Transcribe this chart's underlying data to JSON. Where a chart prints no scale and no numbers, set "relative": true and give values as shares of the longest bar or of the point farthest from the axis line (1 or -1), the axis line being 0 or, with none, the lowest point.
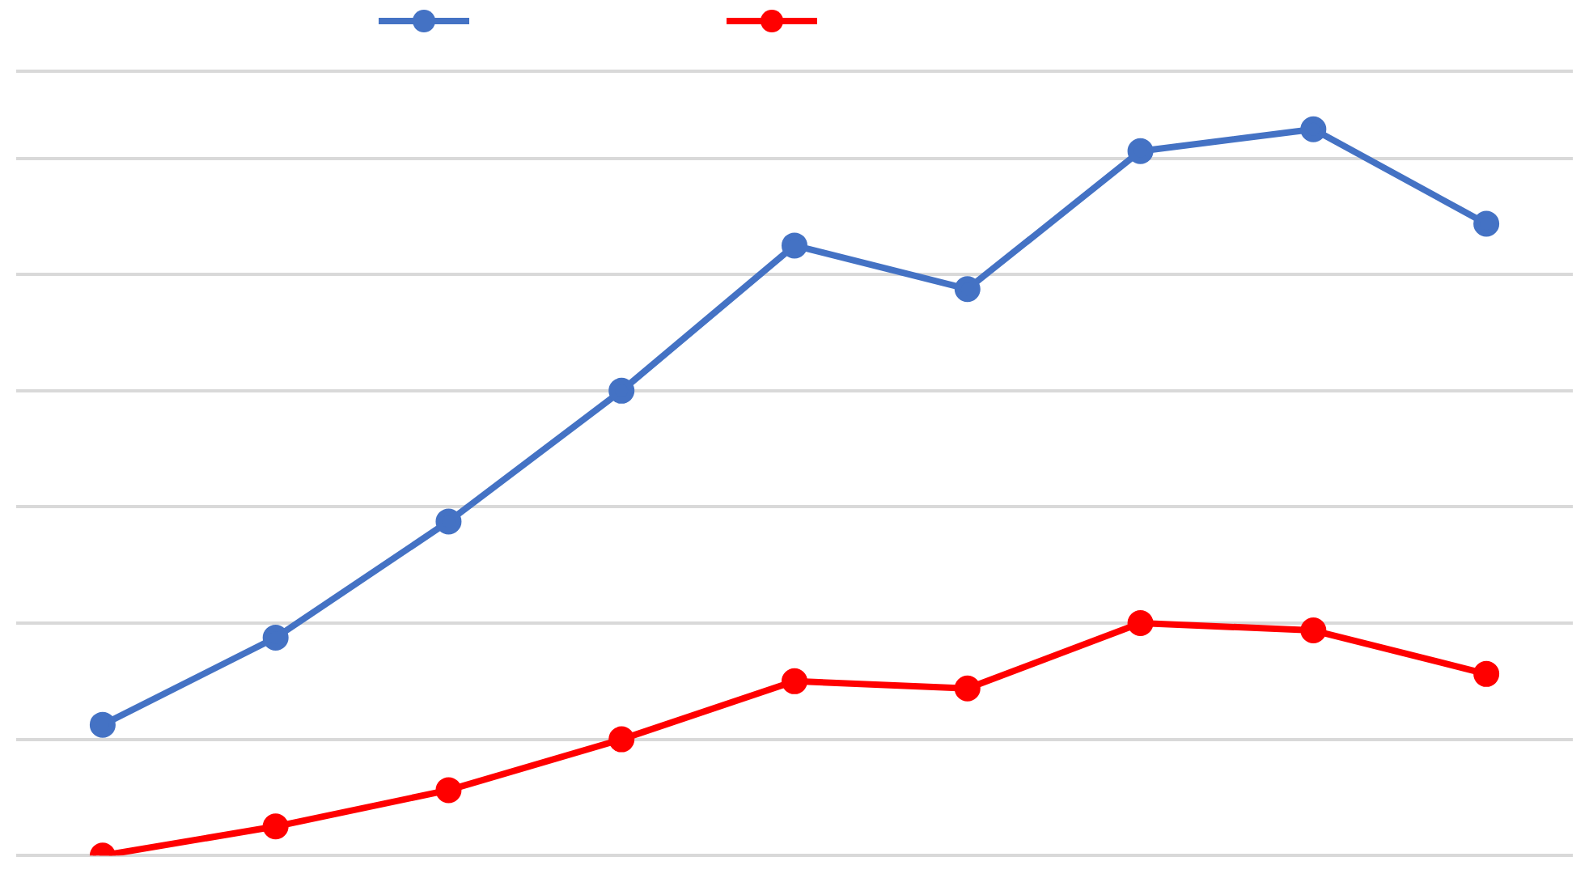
{
  "chart_data": {
    "type": "line",
    "relative": true,
    "categories": [
      null,
      null,
      null,
      null,
      null,
      null,
      null,
      null,
      null
    ],
    "series": [
      {
        "color": "#4472c4",
        "values": [
          0.18,
          0.3,
          0.46,
          0.64,
          0.84,
          0.78,
          0.97,
          1.0,
          0.87
        ]
      },
      {
        "color": "#ff0000",
        "values": [
          0,
          0.04,
          0.09,
          0.16,
          0.24,
          0.23,
          0.32,
          0.31,
          0.25
        ]
      }
    ],
    "grid": "y",
    "marker": "circle",
    "line_style": "solid"
  }
}
